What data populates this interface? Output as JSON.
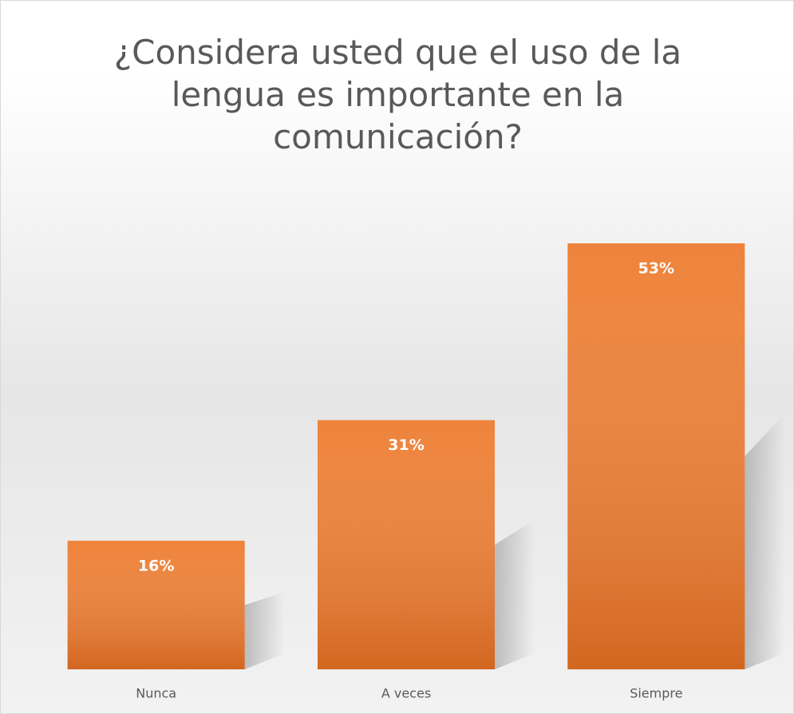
{
  "chart_data": {
    "type": "bar",
    "title": "¿Considera usted que el uso de la lengua es importante en la comunicación?",
    "categories": [
      "Nunca",
      "A veces",
      "Siempre"
    ],
    "values": [
      16,
      31,
      53
    ],
    "value_labels": [
      "16%",
      "31%",
      "53%"
    ],
    "color": "#ed7d31"
  }
}
